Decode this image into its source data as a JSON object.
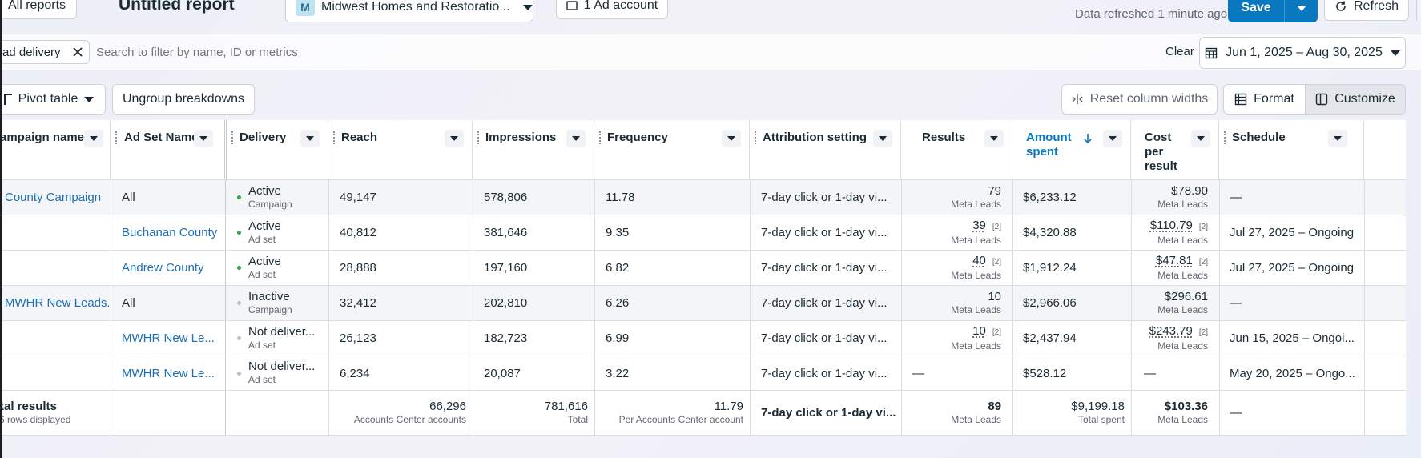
{
  "topbar": {
    "all_reports": "All reports",
    "title": "Untitled report",
    "account_initial": "M",
    "account_name": "Midwest Homes and Restoratio...",
    "ad_account": "1 Ad account",
    "refresh_status": "Data refreshed 1 minute ago",
    "save": "Save",
    "refresh": "Refresh"
  },
  "filterbar": {
    "chip_label": "ad delivery",
    "search_placeholder": "Search to filter by name, ID or metrics",
    "clear": "Clear",
    "date_range": "Jun 1, 2025 – Aug 30, 2025"
  },
  "toolbar": {
    "pivot_table": "Pivot table",
    "ungroup": "Ungroup breakdowns",
    "reset_widths": "Reset column widths",
    "format": "Format",
    "customize": "Customize"
  },
  "columns": {
    "campaign": "ampaign name",
    "adset": "Ad Set Name",
    "delivery": "Delivery",
    "reach": "Reach",
    "impressions": "Impressions",
    "frequency": "Frequency",
    "attribution": "Attribution setting",
    "results": "Results",
    "amount_l1": "Amount",
    "amount_l2": "spent",
    "cost_l1": "Cost",
    "cost_l2": "per",
    "cost_l3": "result",
    "schedule": "Schedule"
  },
  "rows": [
    {
      "campaign": "County Campaign",
      "adset": "All",
      "delivery": "Active",
      "delivery_sub": "Campaign",
      "status": "active",
      "reach": "49,147",
      "impressions": "578,806",
      "frequency": "11.78",
      "attribution": "7-day click or 1-day vi...",
      "results": "79",
      "results_sub": "Meta Leads",
      "results_badge": "",
      "amount": "$6,233.12",
      "cost": "$78.90",
      "cost_sub": "Meta Leads",
      "cost_badge": "",
      "schedule": "—"
    },
    {
      "campaign": "",
      "adset": "Buchanan County",
      "delivery": "Active",
      "delivery_sub": "Ad set",
      "status": "active",
      "reach": "40,812",
      "impressions": "381,646",
      "frequency": "9.35",
      "attribution": "7-day click or 1-day vi...",
      "results": "39",
      "results_sub": "Meta Leads",
      "results_badge": "[2]",
      "amount": "$4,320.88",
      "cost": "$110.79",
      "cost_sub": "Meta Leads",
      "cost_badge": "[2]",
      "schedule": "Jul 27, 2025 – Ongoing"
    },
    {
      "campaign": "",
      "adset": "Andrew County",
      "delivery": "Active",
      "delivery_sub": "Ad set",
      "status": "active",
      "reach": "28,888",
      "impressions": "197,160",
      "frequency": "6.82",
      "attribution": "7-day click or 1-day vi...",
      "results": "40",
      "results_sub": "Meta Leads",
      "results_badge": "[2]",
      "amount": "$1,912.24",
      "cost": "$47.81",
      "cost_sub": "Meta Leads",
      "cost_badge": "[2]",
      "schedule": "Jul 27, 2025 – Ongoing"
    },
    {
      "campaign": "MWHR New Leads...",
      "adset": "All",
      "delivery": "Inactive",
      "delivery_sub": "Campaign",
      "status": "inactive",
      "reach": "32,412",
      "impressions": "202,810",
      "frequency": "6.26",
      "attribution": "7-day click or 1-day vi...",
      "results": "10",
      "results_sub": "Meta Leads",
      "results_badge": "",
      "amount": "$2,966.06",
      "cost": "$296.61",
      "cost_sub": "Meta Leads",
      "cost_badge": "",
      "schedule": "—"
    },
    {
      "campaign": "",
      "adset": "MWHR New Le...",
      "delivery": "Not deliver...",
      "delivery_sub": "Ad set",
      "status": "inactive",
      "reach": "26,123",
      "impressions": "182,723",
      "frequency": "6.99",
      "attribution": "7-day click or 1-day vi...",
      "results": "10",
      "results_sub": "Meta Leads",
      "results_badge": "[2]",
      "amount": "$2,437.94",
      "cost": "$243.79",
      "cost_sub": "Meta Leads",
      "cost_badge": "[2]",
      "schedule": "Jun 15, 2025 – Ongoi..."
    },
    {
      "campaign": "",
      "adset": "MWHR New Le...",
      "delivery": "Not deliver...",
      "delivery_sub": "Ad set",
      "status": "inactive",
      "reach": "6,234",
      "impressions": "20,087",
      "frequency": "3.22",
      "attribution": "7-day click or 1-day vi...",
      "results": "—",
      "results_sub": "",
      "results_badge": "",
      "amount": "$528.12",
      "cost": "—",
      "cost_sub": "",
      "cost_badge": "",
      "schedule": "May 20, 2025 – Ongo..."
    }
  ],
  "totals": {
    "label": "tal results",
    "sub": "6 rows displayed",
    "reach": "66,296",
    "reach_sub": "Accounts Center accounts",
    "impressions": "781,616",
    "impressions_sub": "Total",
    "frequency": "11.79",
    "frequency_sub": "Per Accounts Center account",
    "attribution": "7-day click or 1-day vi...",
    "results": "89",
    "results_sub": "Meta Leads",
    "amount": "$9,199.18",
    "amount_sub": "Total spent",
    "cost": "$103.36",
    "cost_sub": "Meta Leads",
    "schedule": "—"
  },
  "colors": {
    "active": "#31a24c",
    "inactive": "#bcc0c4",
    "accent": "#0a78be"
  }
}
